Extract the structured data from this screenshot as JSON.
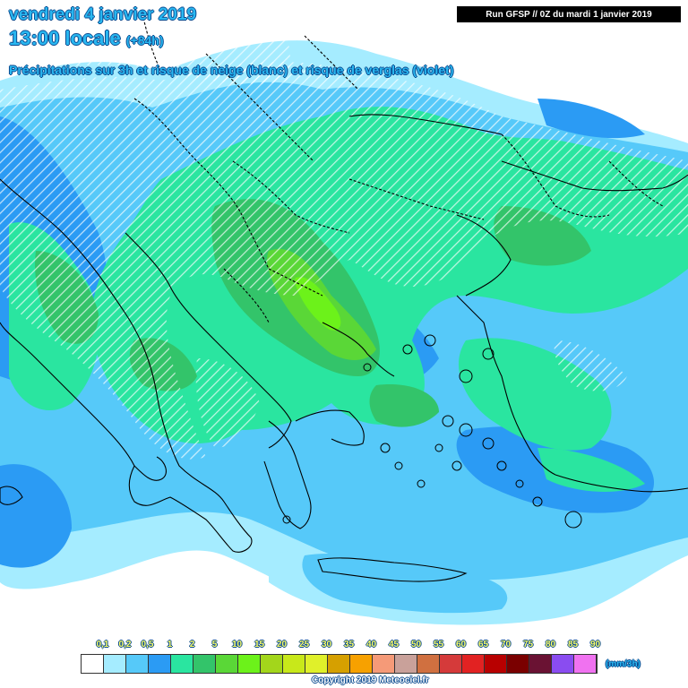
{
  "header": {
    "line1": "vendredi 4 janvier 2019",
    "line2": "13:00 locale",
    "line2_small": "(+84h)",
    "line3": "Précipitations sur 3h et risque de neige (blanc) et risque de verglas (violet)"
  },
  "run_info": "Run GFSP // 0Z du mardi 1 janvier 2019",
  "legend": {
    "labels": [
      "0,1",
      "0,2",
      "0,5",
      "1",
      "2",
      "5",
      "10",
      "15",
      "20",
      "25",
      "30",
      "35",
      "40",
      "45",
      "50",
      "55",
      "60",
      "65",
      "70",
      "75",
      "80",
      "85",
      "90"
    ],
    "colors": [
      "#ffffff",
      "#a5ecff",
      "#56c9f9",
      "#2b9bf4",
      "#2ae5a0",
      "#33c46a",
      "#5ad737",
      "#6cf21a",
      "#a3d61b",
      "#c8e81a",
      "#e0f02a",
      "#d6a000",
      "#f7a100",
      "#f59a78",
      "#c9a19a",
      "#d07040",
      "#d53a3a",
      "#e22222",
      "#b80000",
      "#7a0000",
      "#6a1233",
      "#8a4cf0",
      "#f072f0"
    ],
    "units": "(mm/3h)"
  },
  "copyright": "Copyright 2019 Meteociel.fr",
  "colors": {
    "title": "#29b7f0",
    "outline": "#0a4a8f"
  }
}
